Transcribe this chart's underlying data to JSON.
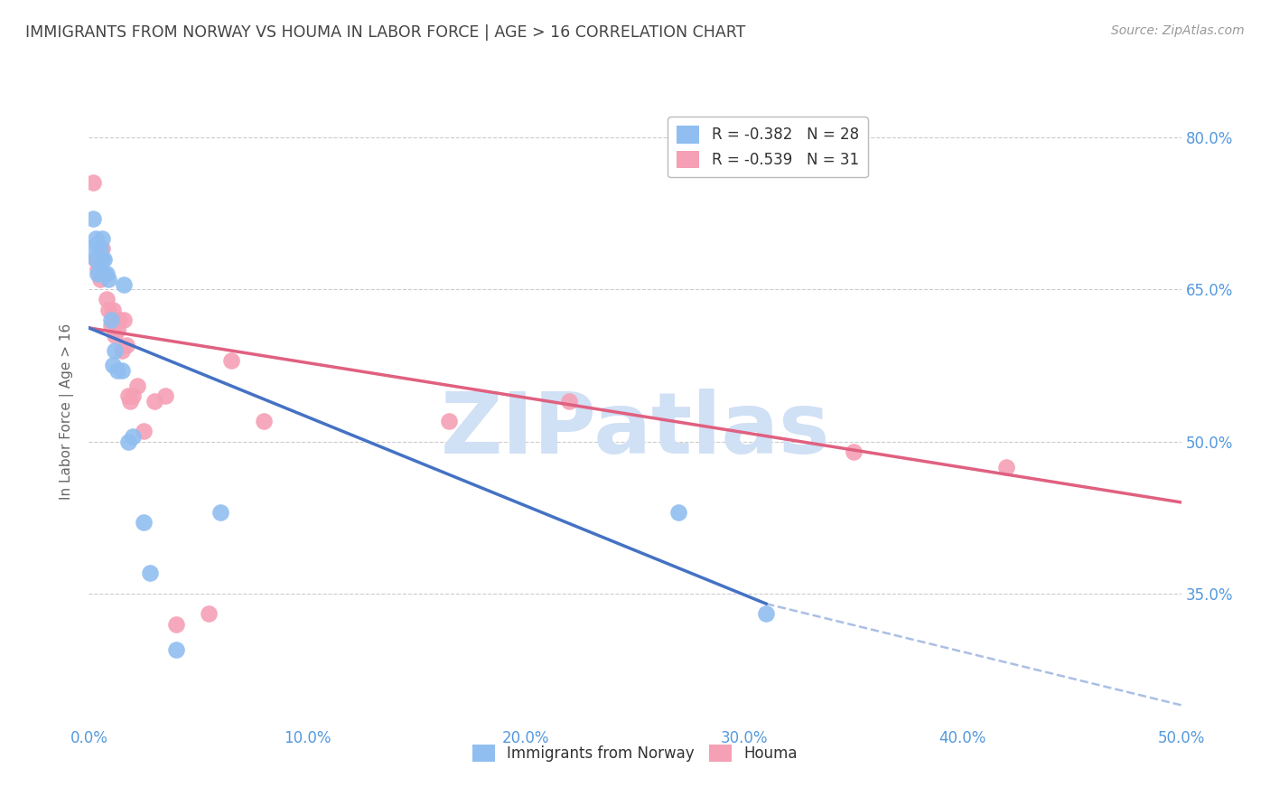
{
  "title": "IMMIGRANTS FROM NORWAY VS HOUMA IN LABOR FORCE | AGE > 16 CORRELATION CHART",
  "source": "Source: ZipAtlas.com",
  "ylabel": "In Labor Force | Age > 16",
  "xlim": [
    0.0,
    0.5
  ],
  "ylim": [
    0.22,
    0.84
  ],
  "yticks": [
    0.35,
    0.5,
    0.65,
    0.8
  ],
  "ytick_labels": [
    "35.0%",
    "50.0%",
    "65.0%",
    "80.0%"
  ],
  "xticks": [
    0.0,
    0.1,
    0.2,
    0.3,
    0.4,
    0.5
  ],
  "xtick_labels": [
    "0.0%",
    "10.0%",
    "20.0%",
    "30.0%",
    "40.0%",
    "50.0%"
  ],
  "norway_R": -0.382,
  "norway_N": 28,
  "houma_R": -0.539,
  "houma_N": 31,
  "norway_color": "#90BEF0",
  "houma_color": "#F5A0B5",
  "norway_line_color": "#4472C4",
  "houma_line_color": "#E06080",
  "watermark": "ZIPatlas",
  "watermark_color": "#D0E0F5",
  "norway_x": [
    0.001,
    0.002,
    0.003,
    0.003,
    0.004,
    0.004,
    0.005,
    0.005,
    0.006,
    0.006,
    0.007,
    0.007,
    0.008,
    0.009,
    0.01,
    0.011,
    0.012,
    0.013,
    0.015,
    0.016,
    0.018,
    0.02,
    0.025,
    0.06,
    0.27,
    0.31,
    0.028,
    0.04
  ],
  "norway_y": [
    0.69,
    0.72,
    0.7,
    0.68,
    0.695,
    0.665,
    0.69,
    0.67,
    0.7,
    0.68,
    0.68,
    0.665,
    0.665,
    0.66,
    0.62,
    0.575,
    0.59,
    0.57,
    0.57,
    0.655,
    0.5,
    0.505,
    0.42,
    0.43,
    0.43,
    0.33,
    0.37,
    0.295
  ],
  "houma_x": [
    0.002,
    0.003,
    0.004,
    0.005,
    0.006,
    0.007,
    0.008,
    0.009,
    0.01,
    0.011,
    0.012,
    0.013,
    0.014,
    0.015,
    0.016,
    0.017,
    0.018,
    0.019,
    0.02,
    0.022,
    0.025,
    0.03,
    0.035,
    0.065,
    0.08,
    0.165,
    0.22,
    0.35,
    0.42,
    0.04,
    0.055
  ],
  "houma_y": [
    0.755,
    0.68,
    0.67,
    0.66,
    0.69,
    0.665,
    0.64,
    0.63,
    0.615,
    0.63,
    0.605,
    0.61,
    0.62,
    0.59,
    0.62,
    0.595,
    0.545,
    0.54,
    0.545,
    0.555,
    0.51,
    0.54,
    0.545,
    0.58,
    0.52,
    0.52,
    0.54,
    0.49,
    0.475,
    0.32,
    0.33
  ],
  "norway_line_y0": 0.612,
  "norway_line_y_solid_end": 0.34,
  "norway_line_x_solid_end": 0.31,
  "norway_line_y_dashed_end": 0.24,
  "norway_line_x_dashed_end": 0.5,
  "houma_line_y0": 0.612,
  "houma_line_y_end": 0.44,
  "background_color": "#FFFFFF",
  "grid_color": "#CCCCCC",
  "title_color": "#444444",
  "tick_color": "#5599DD",
  "label_color": "#666666"
}
